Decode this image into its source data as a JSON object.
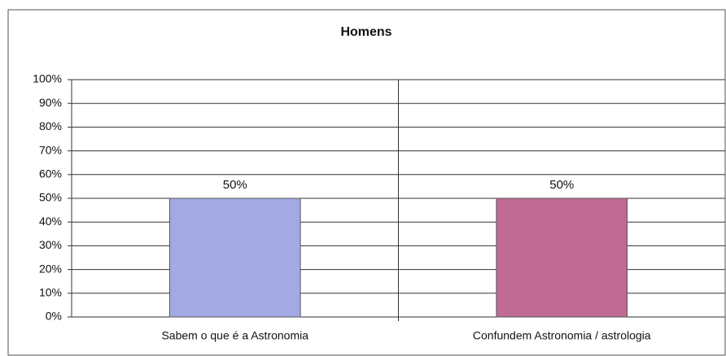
{
  "chart_data": {
    "type": "bar",
    "title": "Homens",
    "categories": [
      "Sabem o que é a Astronomia",
      "Confundem  Astronomia / astrologia"
    ],
    "values": [
      50,
      50
    ],
    "value_labels": [
      "50%",
      "50%"
    ],
    "colors": [
      "#a3aae3",
      "#c06b93"
    ],
    "ylim": [
      0,
      100
    ],
    "yticks": [
      {
        "value": 0,
        "label": "0%"
      },
      {
        "value": 10,
        "label": "10%"
      },
      {
        "value": 20,
        "label": "20%"
      },
      {
        "value": 30,
        "label": "30%"
      },
      {
        "value": 40,
        "label": "40%"
      },
      {
        "value": 50,
        "label": "50%"
      },
      {
        "value": 60,
        "label": "60%"
      },
      {
        "value": 70,
        "label": "70%"
      },
      {
        "value": 80,
        "label": "80%"
      },
      {
        "value": 90,
        "label": "90%"
      },
      {
        "value": 100,
        "label": "100%"
      }
    ],
    "grid": true
  }
}
